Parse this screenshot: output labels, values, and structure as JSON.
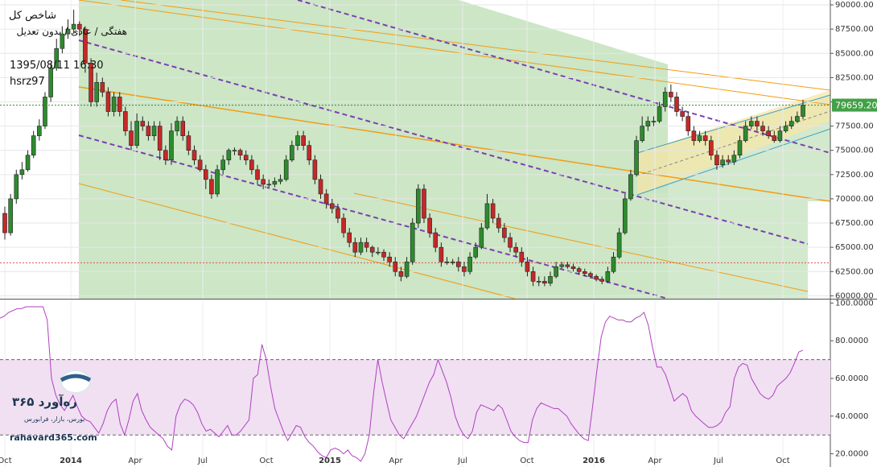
{
  "header": {
    "title": "شاخص کل",
    "subtitle": "هفتگی / عادی / بدون تعدیل",
    "datetime": "1395/08/11 16:30",
    "symbol": "hsrz97"
  },
  "watermark": {
    "brand": "ره‌آورد ۳۶۵",
    "tagline": "بورس، بازار، فرابورس",
    "site": "rahavard365.com"
  },
  "colors": {
    "up": "#2e8b2e",
    "down": "#c62828",
    "channel_fill": "#c7e3c0",
    "channel_line": "#f39c12",
    "dashed": "#7b3fb0",
    "rsi_line": "#b040c0",
    "rsi_band": "#f0e0f2",
    "current_bg": "#43a047"
  },
  "chart_data": [
    {
      "type": "candlestick",
      "name": "price",
      "y_ticks": [
        "60000.00",
        "62500.00",
        "65000.00",
        "67500.00",
        "70000.00",
        "72500.00",
        "75000.00",
        "77500.00",
        "80000.00",
        "82500.00",
        "85000.00",
        "87500.00",
        "90000.00"
      ],
      "ylim": [
        59700,
        90500
      ],
      "x_ticks": [
        "Oct",
        "2014",
        "Apr",
        "Jul",
        "Oct",
        "2015",
        "Apr",
        "Jul",
        "Oct",
        "2016",
        "Apr",
        "Jul",
        "Oct"
      ],
      "current_value": "79659.20",
      "reference_level": 63400,
      "grid": true,
      "candles": [
        [
          68500,
          66500,
          69200,
          65800
        ],
        [
          66500,
          70000,
          70500,
          66200
        ],
        [
          70000,
          72500,
          73000,
          69500
        ],
        [
          72500,
          73000,
          73800,
          72000
        ],
        [
          73000,
          74500,
          75000,
          72800
        ],
        [
          74500,
          76500,
          77000,
          74200
        ],
        [
          76500,
          77500,
          78200,
          76000
        ],
        [
          77500,
          80500,
          81000,
          77200
        ],
        [
          80500,
          83500,
          84000,
          80000
        ],
        [
          83500,
          85500,
          86500,
          83200
        ],
        [
          85500,
          87000,
          87800,
          85000
        ],
        [
          87000,
          87500,
          88500,
          86500
        ],
        [
          87500,
          88000,
          89500,
          87000
        ],
        [
          88000,
          87500,
          88300,
          86800
        ],
        [
          87500,
          84000,
          87800,
          83000
        ],
        [
          84000,
          80000,
          84500,
          79500
        ],
        [
          80000,
          82000,
          83000,
          79500
        ],
        [
          82000,
          81000,
          82500,
          80500
        ],
        [
          81000,
          79000,
          81500,
          78500
        ],
        [
          79000,
          80500,
          81000,
          78500
        ],
        [
          80500,
          79000,
          81000,
          78500
        ],
        [
          79000,
          77000,
          79500,
          76500
        ],
        [
          77000,
          75500,
          78000,
          75000
        ],
        [
          75500,
          78000,
          78800,
          75200
        ],
        [
          78000,
          77500,
          78500,
          77000
        ],
        [
          77500,
          76500,
          78000,
          76000
        ],
        [
          76500,
          77500,
          78000,
          76000
        ],
        [
          77500,
          75000,
          78000,
          74000
        ],
        [
          75000,
          74000,
          75500,
          73500
        ],
        [
          74000,
          77000,
          77800,
          73500
        ],
        [
          77000,
          78000,
          78500,
          76500
        ],
        [
          78000,
          76500,
          78500,
          76000
        ],
        [
          76500,
          75000,
          77000,
          74500
        ],
        [
          75000,
          74000,
          75500,
          73500
        ],
        [
          74000,
          73000,
          74500,
          72800
        ],
        [
          73000,
          72000,
          73500,
          71000
        ],
        [
          72000,
          70500,
          72500,
          70000
        ],
        [
          70500,
          73000,
          73500,
          70200
        ],
        [
          73000,
          74000,
          74500,
          72500
        ],
        [
          74000,
          75000,
          75200,
          73500
        ],
        [
          75000,
          75000,
          75300,
          74500
        ],
        [
          75000,
          74500,
          75200,
          74000
        ],
        [
          74500,
          74000,
          75000,
          73500
        ],
        [
          74000,
          73000,
          74500,
          72500
        ],
        [
          73000,
          72000,
          73500,
          71500
        ],
        [
          72000,
          71500,
          72500,
          71000
        ],
        [
          71500,
          71500,
          72000,
          71200
        ],
        [
          71500,
          71800,
          72200,
          71200
        ],
        [
          71800,
          72000,
          72500,
          71500
        ],
        [
          72000,
          74000,
          74500,
          71800
        ],
        [
          74000,
          75500,
          76000,
          73800
        ],
        [
          75500,
          76500,
          77000,
          75000
        ],
        [
          76500,
          75500,
          77000,
          75000
        ],
        [
          75500,
          74000,
          76000,
          73500
        ],
        [
          74000,
          72000,
          74500,
          71500
        ],
        [
          72000,
          70500,
          72500,
          70000
        ],
        [
          70500,
          69500,
          71000,
          69000
        ],
        [
          69500,
          69000,
          70000,
          68500
        ],
        [
          69000,
          68000,
          69500,
          67500
        ],
        [
          68000,
          66500,
          68500,
          66000
        ],
        [
          66500,
          65500,
          67000,
          65000
        ],
        [
          65500,
          64500,
          66000,
          64000
        ],
        [
          64500,
          65500,
          66000,
          64200
        ],
        [
          65500,
          65000,
          66000,
          64500
        ],
        [
          65000,
          64500,
          65200,
          64000
        ],
        [
          64500,
          64500,
          65000,
          64200
        ],
        [
          64500,
          64000,
          64800,
          63600
        ],
        [
          64000,
          63500,
          64500,
          63000
        ],
        [
          63500,
          62500,
          64000,
          62000
        ],
        [
          62500,
          62000,
          63000,
          61500
        ],
        [
          62000,
          63500,
          64000,
          61800
        ],
        [
          63500,
          67500,
          68000,
          63200
        ],
        [
          67500,
          71000,
          71500,
          67000
        ],
        [
          71000,
          68000,
          71500,
          67500
        ],
        [
          68000,
          66500,
          68500,
          66000
        ],
        [
          66500,
          65000,
          67000,
          64500
        ],
        [
          65000,
          63500,
          65500,
          63000
        ],
        [
          63500,
          63500,
          64000,
          63200
        ],
        [
          63500,
          63500,
          63800,
          63200
        ],
        [
          63500,
          63000,
          64000,
          62500
        ],
        [
          63000,
          62500,
          63500,
          62000
        ],
        [
          62500,
          64000,
          64500,
          62200
        ],
        [
          64000,
          65000,
          65500,
          63800
        ],
        [
          65000,
          67000,
          67500,
          64800
        ],
        [
          67000,
          69500,
          70500,
          66800
        ],
        [
          69500,
          68000,
          70000,
          67500
        ],
        [
          68000,
          67000,
          68500,
          66500
        ],
        [
          67000,
          66000,
          67500,
          65500
        ],
        [
          66000,
          65000,
          66500,
          64500
        ],
        [
          65000,
          64500,
          65500,
          64000
        ],
        [
          64500,
          63500,
          65000,
          63000
        ],
        [
          63500,
          62500,
          64000,
          62000
        ],
        [
          62500,
          61500,
          63000,
          61000
        ],
        [
          61500,
          61500,
          62000,
          61000
        ],
        [
          61500,
          61300,
          62000,
          61000
        ],
        [
          61300,
          62000,
          62500,
          61000
        ],
        [
          62000,
          63000,
          63500,
          61800
        ],
        [
          63000,
          63200,
          63500,
          62800
        ],
        [
          63200,
          63000,
          63500,
          62800
        ],
        [
          63000,
          62800,
          63300,
          62500
        ],
        [
          62800,
          62500,
          63000,
          62200
        ],
        [
          62500,
          62300,
          62800,
          62000
        ],
        [
          62300,
          62000,
          62500,
          61800
        ],
        [
          62000,
          61700,
          62200,
          61500
        ],
        [
          61700,
          61500,
          62000,
          61200
        ],
        [
          61500,
          62500,
          63000,
          61300
        ],
        [
          62500,
          64000,
          64500,
          62300
        ],
        [
          64000,
          66500,
          67000,
          63800
        ],
        [
          66500,
          70000,
          70500,
          66300
        ],
        [
          70000,
          72500,
          73000,
          69800
        ],
        [
          72500,
          76000,
          76500,
          72300
        ],
        [
          76000,
          77500,
          78500,
          75800
        ],
        [
          77500,
          78000,
          78500,
          77000
        ],
        [
          78000,
          78000,
          78500,
          77500
        ],
        [
          78000,
          79500,
          80000,
          77800
        ],
        [
          79500,
          81000,
          81500,
          79000
        ],
        [
          81000,
          80500,
          81800,
          80000
        ],
        [
          80500,
          79000,
          81000,
          78500
        ],
        [
          79000,
          78500,
          79500,
          78000
        ],
        [
          78500,
          77000,
          79000,
          76500
        ],
        [
          77000,
          76000,
          77500,
          75500
        ],
        [
          76000,
          76500,
          77000,
          75800
        ],
        [
          76500,
          76000,
          77000,
          75500
        ],
        [
          76000,
          74500,
          76500,
          74000
        ],
        [
          74500,
          73500,
          75000,
          73000
        ],
        [
          73500,
          74000,
          74500,
          73200
        ],
        [
          74000,
          73800,
          74500,
          73500
        ],
        [
          73800,
          74500,
          75000,
          73500
        ],
        [
          74500,
          76000,
          76500,
          74200
        ],
        [
          76000,
          77500,
          78000,
          75800
        ],
        [
          77500,
          78000,
          78500,
          77200
        ],
        [
          78000,
          77500,
          78500,
          77000
        ],
        [
          77500,
          77000,
          78000,
          76500
        ],
        [
          77000,
          76500,
          77500,
          76200
        ],
        [
          76500,
          76000,
          77000,
          75800
        ],
        [
          76000,
          77000,
          77500,
          75800
        ],
        [
          77000,
          77500,
          78000,
          76800
        ],
        [
          77500,
          78000,
          78500,
          77200
        ],
        [
          78000,
          78500,
          79000,
          77800
        ],
        [
          78500,
          79659,
          80200,
          78200
        ]
      ]
    },
    {
      "type": "line",
      "name": "rsi",
      "y_ticks": [
        "20.0000",
        "40.0000",
        "60.0000",
        "80.0000",
        "100.0000"
      ],
      "ylim": [
        13,
        101
      ],
      "band": [
        30,
        70
      ],
      "values": [
        92,
        93,
        95,
        96,
        97,
        97,
        98,
        98,
        98,
        98,
        98,
        91,
        60,
        51,
        46,
        43,
        47,
        51,
        45,
        40,
        38,
        37,
        34,
        31,
        36,
        43,
        47,
        49,
        36,
        30,
        38,
        48,
        52,
        43,
        38,
        34,
        32,
        30,
        28,
        24,
        22,
        40,
        46,
        49,
        48,
        46,
        42,
        36,
        32,
        33,
        31,
        29,
        32,
        35,
        30,
        30,
        32,
        35,
        38,
        60,
        62,
        78,
        70,
        56,
        44,
        38,
        32,
        27,
        31,
        35,
        34,
        29,
        26,
        24,
        21,
        19,
        18,
        22,
        23,
        22,
        20,
        22,
        19,
        18,
        16,
        20,
        30,
        52,
        70,
        58,
        48,
        38,
        34,
        30,
        28,
        32,
        36,
        40,
        46,
        52,
        58,
        62,
        70,
        64,
        58,
        50,
        40,
        34,
        30,
        28,
        32,
        42,
        46,
        45,
        44,
        43,
        46,
        44,
        38,
        32,
        29,
        27,
        26,
        26,
        38,
        44,
        47,
        46,
        45,
        44,
        44,
        42,
        40,
        36,
        33,
        30,
        28,
        27,
        45,
        64,
        82,
        90,
        93,
        92,
        91,
        91,
        90,
        90,
        92,
        93,
        95,
        88,
        76,
        66,
        66,
        62,
        55,
        48,
        50,
        52,
        50,
        43,
        40,
        38,
        36,
        34,
        34,
        35,
        37,
        42,
        45,
        60,
        66,
        68,
        67,
        60,
        56,
        52,
        50,
        49,
        51,
        56,
        58,
        60,
        63,
        68,
        74,
        75
      ]
    }
  ]
}
